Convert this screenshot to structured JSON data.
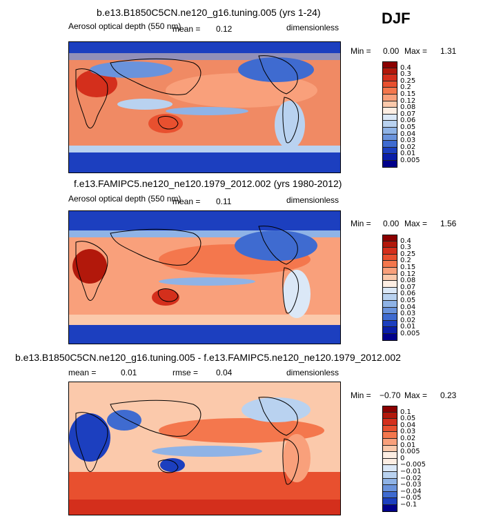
{
  "season": "DJF",
  "panels": [
    {
      "title": "b.e13.B1850C5CN.ne120_g16.tuning.005 (yrs 1-24)",
      "variable": "Aerosol optical depth (550 nm)",
      "mean_label": "mean =",
      "mean_value": "0.12",
      "units": "dimensionless",
      "min_label": "Min =",
      "min_value": "0.00",
      "max_label": "Max =",
      "max_value": "1.31",
      "colorbar_labels": [
        "0.4",
        "0.3",
        "0.25",
        "0.2",
        "0.15",
        "0.12",
        "0.08",
        "0.07",
        "0.06",
        "0.05",
        "0.04",
        "0.03",
        "0.02",
        "0.01",
        "0.005"
      ],
      "colorbar_colors": [
        "#8b0000",
        "#b2180b",
        "#d42f1c",
        "#e8502f",
        "#f4774d",
        "#f9a07b",
        "#fbc9ab",
        "#fdeee3",
        "#dbe8f7",
        "#b9d2f0",
        "#8fb3e6",
        "#6a93dc",
        "#3f6bd0",
        "#1c3fbf",
        "#0a1ea8",
        "#00008b"
      ]
    },
    {
      "title": "f.e13.FAMIPC5.ne120_ne120.1979_2012.002 (yrs 1980-2012)",
      "variable": "Aerosol optical depth (550 nm)",
      "mean_label": "mean =",
      "mean_value": "0.11",
      "units": "dimensionless",
      "min_label": "Min =",
      "min_value": "0.00",
      "max_label": "Max =",
      "max_value": "1.56",
      "colorbar_labels": [
        "0.4",
        "0.3",
        "0.25",
        "0.2",
        "0.15",
        "0.12",
        "0.08",
        "0.07",
        "0.06",
        "0.05",
        "0.04",
        "0.03",
        "0.02",
        "0.01",
        "0.005"
      ],
      "colorbar_colors": [
        "#8b0000",
        "#b2180b",
        "#d42f1c",
        "#e8502f",
        "#f4774d",
        "#f9a07b",
        "#fbc9ab",
        "#fdeee3",
        "#dbe8f7",
        "#b9d2f0",
        "#8fb3e6",
        "#6a93dc",
        "#3f6bd0",
        "#1c3fbf",
        "#0a1ea8",
        "#00008b"
      ]
    },
    {
      "title": "b.e13.B1850C5CN.ne120_g16.tuning.005 - f.e13.FAMIPC5.ne120_ne120.1979_2012.002",
      "mean_label": "mean =",
      "mean_value": "0.01",
      "rmse_label": "rmse =",
      "rmse_value": "0.04",
      "units": "dimensionless",
      "min_label": "Min =",
      "min_value": "−0.70",
      "max_label": "Max =",
      "max_value": "0.23",
      "colorbar_labels": [
        "0.1",
        "0.05",
        "0.04",
        "0.03",
        "0.02",
        "0.01",
        "0.005",
        "0",
        "−0.005",
        "−0.01",
        "−0.02",
        "−0.03",
        "−0.04",
        "−0.05",
        "−0.1"
      ],
      "colorbar_colors": [
        "#8b0000",
        "#b2180b",
        "#d42f1c",
        "#e8502f",
        "#f4774d",
        "#f9a07b",
        "#fbc9ab",
        "#fdeee3",
        "#fdeee3",
        "#dbe8f7",
        "#b9d2f0",
        "#8fb3e6",
        "#6a93dc",
        "#3f6bd0",
        "#1c3fbf",
        "#00008b"
      ]
    }
  ]
}
